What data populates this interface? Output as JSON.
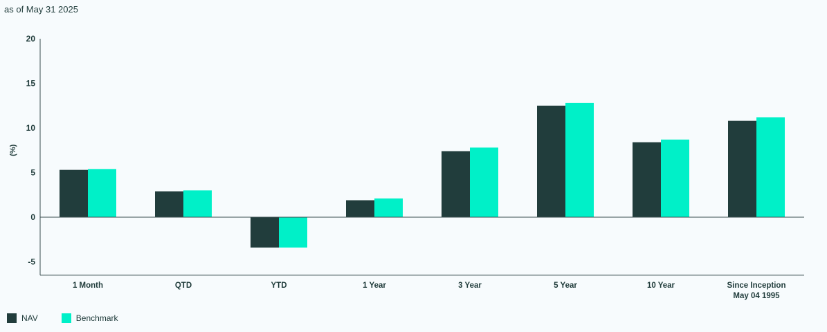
{
  "subtitle": "as of May 31 2025",
  "colors": {
    "nav": "#213d3c",
    "benchmark": "#00f0c8",
    "axis": "#3a4e50"
  },
  "chart_data": {
    "type": "bar",
    "ylabel": "(%)",
    "ylim": [
      -6.5,
      20
    ],
    "yticks": [
      20,
      15,
      10,
      5,
      0,
      -5
    ],
    "categories": [
      "1 Month",
      "QTD",
      "YTD",
      "1 Year",
      "3 Year",
      "5 Year",
      "10 Year",
      "Since Inception|May 04 1995"
    ],
    "series": [
      {
        "name": "NAV",
        "values": [
          5.3,
          2.9,
          -3.4,
          1.9,
          7.4,
          12.5,
          8.4,
          10.8
        ]
      },
      {
        "name": "Benchmark",
        "values": [
          5.4,
          3.0,
          -3.4,
          2.1,
          7.8,
          12.8,
          8.7,
          11.2
        ]
      }
    ],
    "legend": "bottom-left"
  }
}
